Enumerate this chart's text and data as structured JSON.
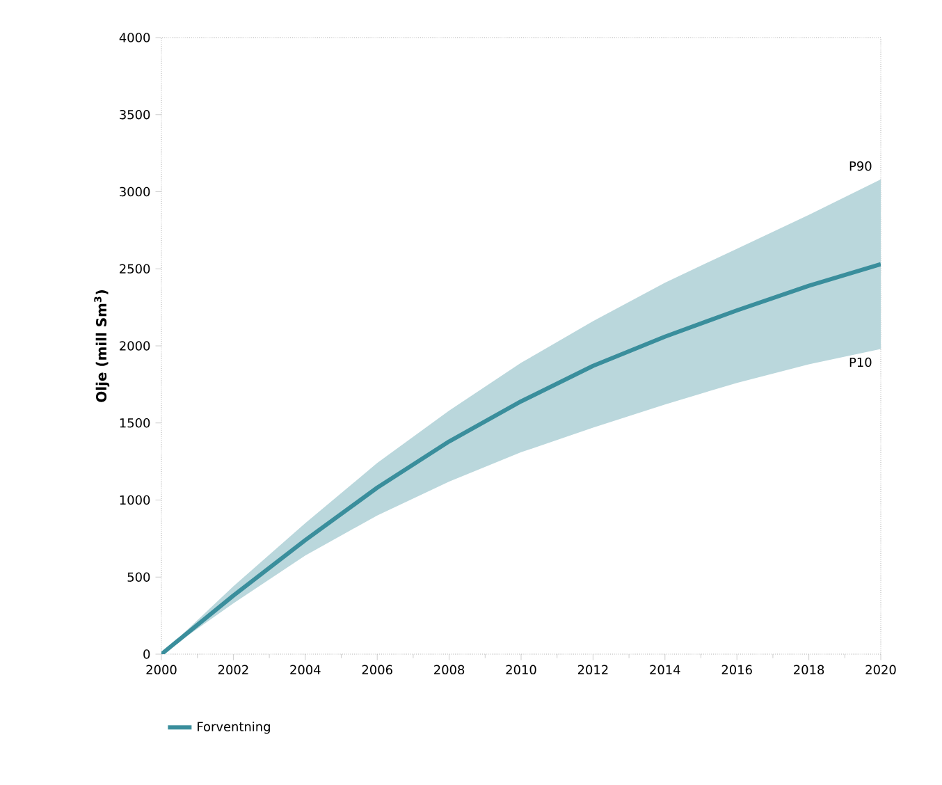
{
  "chart_data": {
    "type": "line",
    "ylabel": "Olje (mill Sm$^{3}$)",
    "x": [
      2000,
      2002,
      2004,
      2006,
      2008,
      2010,
      2012,
      2014,
      2016,
      2018,
      2020
    ],
    "series": [
      {
        "name": "Forventning",
        "color": "#3a8e9c",
        "values": [
          0,
          380,
          740,
          1080,
          1380,
          1640,
          1870,
          2060,
          2230,
          2390,
          2530
        ],
        "lower": [
          0,
          330,
          640,
          900,
          1120,
          1310,
          1470,
          1620,
          1760,
          1880,
          1980
        ],
        "upper": [
          0,
          440,
          850,
          1240,
          1580,
          1890,
          2160,
          2410,
          2630,
          2850,
          3080
        ]
      }
    ],
    "annotations": [
      {
        "text": "P90",
        "x": 2020,
        "y": 3080
      },
      {
        "text": "P10",
        "x": 2020,
        "y": 1980
      }
    ],
    "xlim": [
      2000,
      2020
    ],
    "xticks": [
      2000,
      2002,
      2004,
      2006,
      2008,
      2010,
      2012,
      2014,
      2016,
      2018,
      2020
    ],
    "ylim": [
      0,
      4000
    ],
    "yticks": [
      0,
      500,
      1000,
      1500,
      2000,
      2500,
      3000,
      3500,
      4000
    ],
    "legend": "bottom",
    "grid": false,
    "marker": "none",
    "line_style": "solid"
  }
}
